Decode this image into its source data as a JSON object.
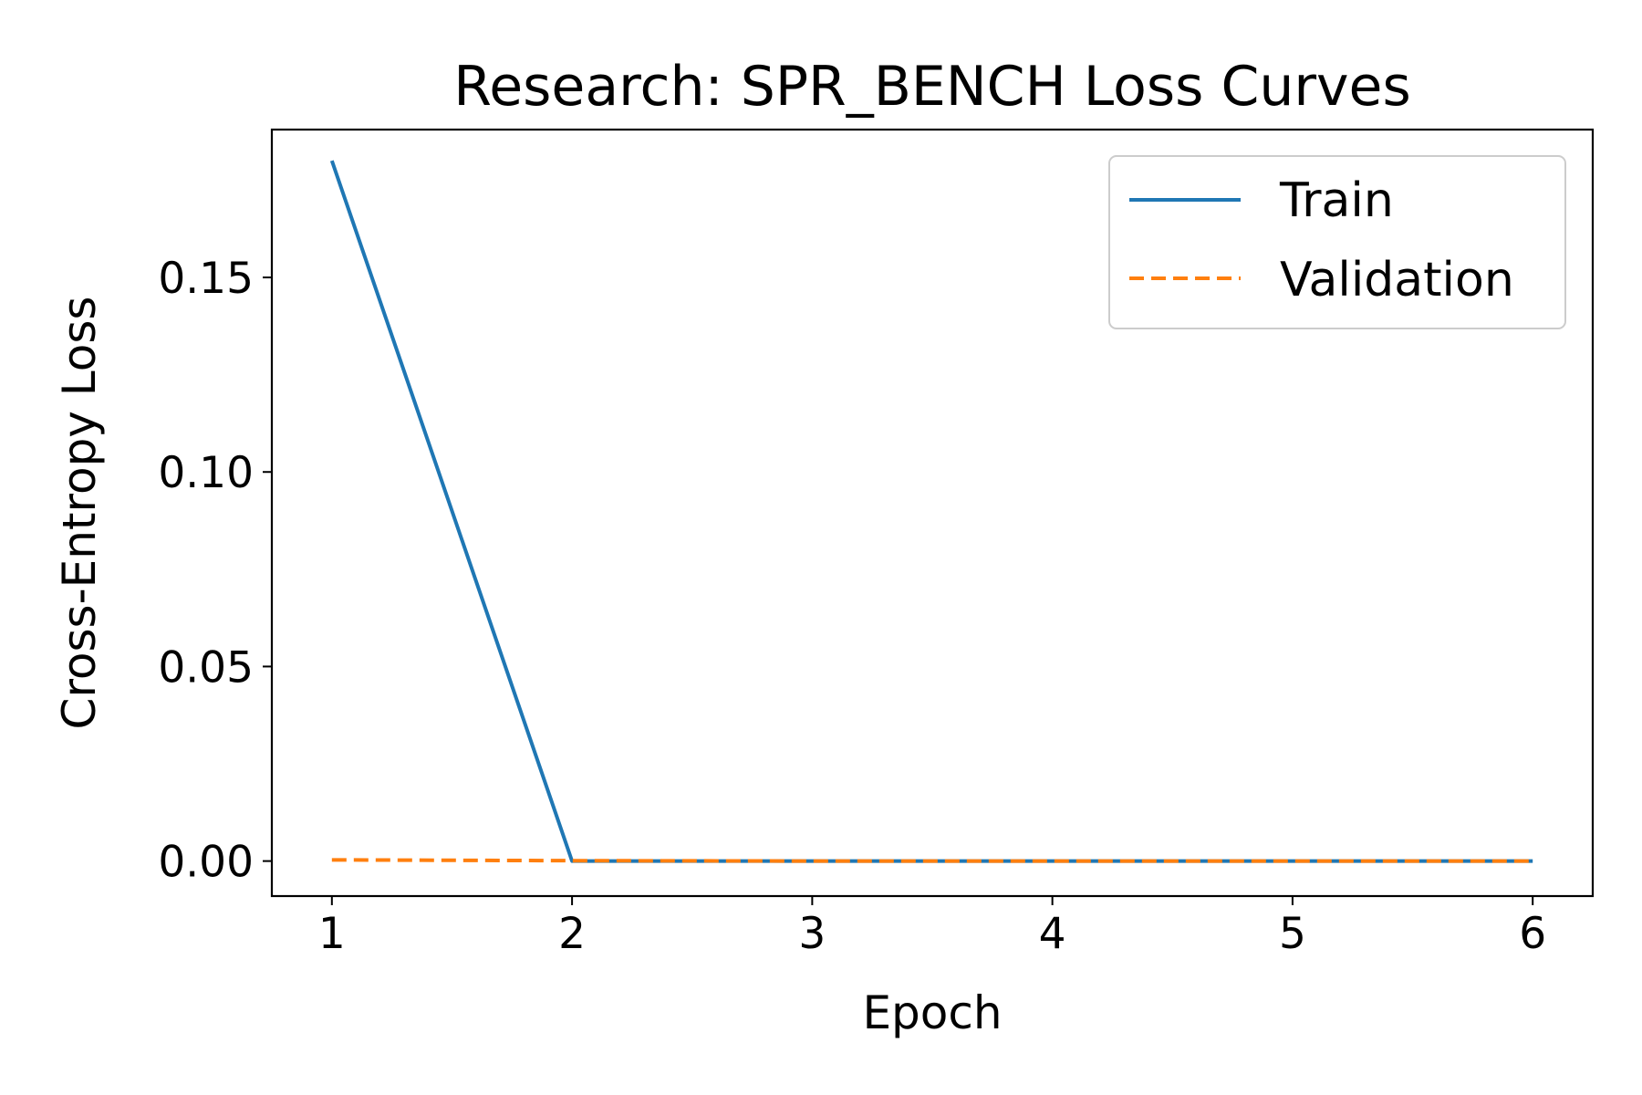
{
  "chart_data": {
    "type": "line",
    "title": "Research: SPR_BENCH Loss Curves",
    "xlabel": "Epoch",
    "ylabel": "Cross-Entropy Loss",
    "x": [
      1,
      2,
      3,
      4,
      5,
      6
    ],
    "xlim": [
      0.75,
      6.25
    ],
    "ylim": [
      -0.009,
      0.188
    ],
    "xticks": [
      1,
      2,
      3,
      4,
      5,
      6
    ],
    "xtick_labels": [
      "1",
      "2",
      "3",
      "4",
      "5",
      "6"
    ],
    "yticks": [
      0.0,
      0.05,
      0.1,
      0.15
    ],
    "ytick_labels": [
      "0.00",
      "0.05",
      "0.10",
      "0.15"
    ],
    "grid": false,
    "legend_position": "top-right",
    "series": [
      {
        "name": "Train",
        "values": [
          0.18,
          0.0,
          0.0,
          0.0,
          0.0,
          0.0
        ],
        "color": "#1f77b4",
        "style": "solid"
      },
      {
        "name": "Validation",
        "values": [
          0.0003,
          0.0001,
          0.0,
          0.0,
          0.0,
          0.0
        ],
        "color": "#ff7f0e",
        "style": "dashed"
      }
    ]
  }
}
